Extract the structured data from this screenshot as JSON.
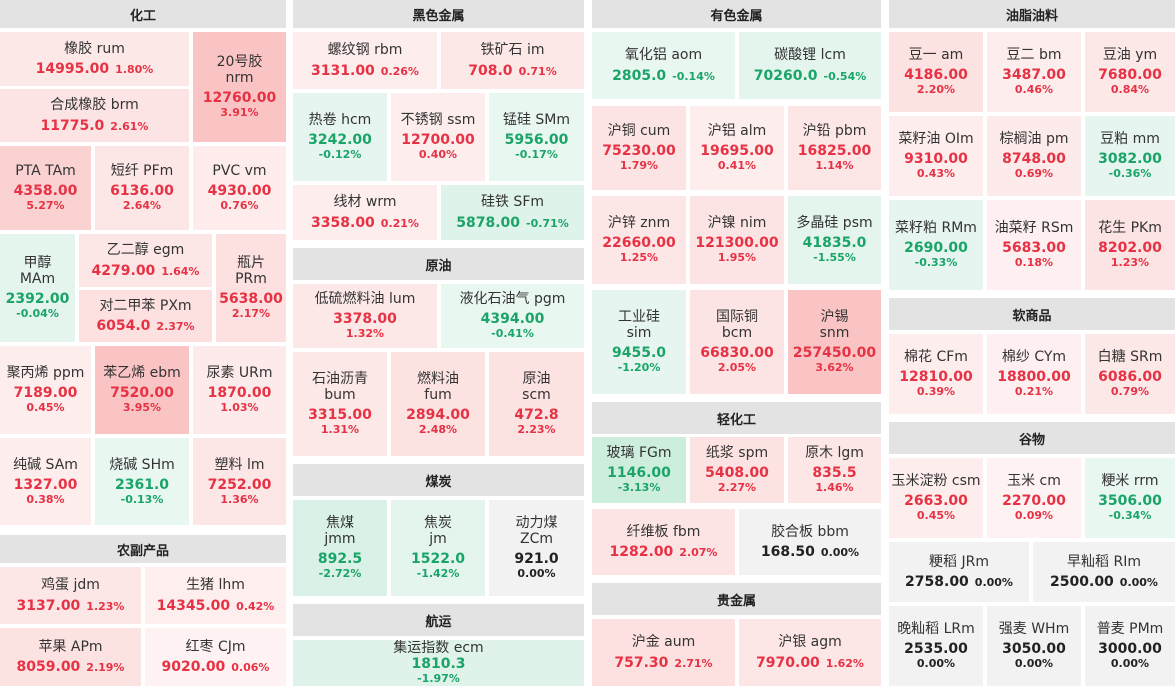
{
  "colors": {
    "up": "#e63244",
    "down": "#1aa468",
    "flat": "#222222",
    "header_bg": "#e3e3e3"
  },
  "headers": [
    {
      "label": "化工"
    },
    {
      "label": "农副产品"
    },
    {
      "label": "黑色金属"
    },
    {
      "label": "原油"
    },
    {
      "label": "煤炭"
    },
    {
      "label": "航运"
    },
    {
      "label": "有色金属"
    },
    {
      "label": "轻化工"
    },
    {
      "label": "贵金属"
    },
    {
      "label": "油脂油料"
    },
    {
      "label": "软商品"
    },
    {
      "label": "谷物"
    }
  ],
  "tiles": [
    {
      "name": "橡胶  rum",
      "price": "14995.00",
      "pct": "1.80%",
      "dir": "up"
    },
    {
      "name": "20号胶",
      "code": "nrm",
      "price": "12760.00",
      "pct": "3.91%",
      "dir": "up"
    },
    {
      "name": "合成橡胶  brm",
      "price": "11775.0",
      "pct": "2.61%",
      "dir": "up"
    },
    {
      "name": "PTA  TAm",
      "price": "4358.00",
      "pct": "5.27%",
      "dir": "up"
    },
    {
      "name": "短纤  PFm",
      "price": "6136.00",
      "pct": "2.64%",
      "dir": "up"
    },
    {
      "name": "PVC  vm",
      "price": "4930.00",
      "pct": "0.76%",
      "dir": "up"
    },
    {
      "name": "甲醇",
      "code": "MAm",
      "price": "2392.00",
      "pct": "-0.04%",
      "dir": "down"
    },
    {
      "name": "乙二醇  egm",
      "price": "4279.00",
      "pct": "1.64%",
      "dir": "up"
    },
    {
      "name": "对二甲苯  PXm",
      "price": "6054.0",
      "pct": "2.37%",
      "dir": "up"
    },
    {
      "name": "瓶片",
      "code": "PRm",
      "price": "5638.00",
      "pct": "2.17%",
      "dir": "up"
    },
    {
      "name": "聚丙烯  ppm",
      "price": "7189.00",
      "pct": "0.45%",
      "dir": "up"
    },
    {
      "name": "苯乙烯  ebm",
      "price": "7520.00",
      "pct": "3.95%",
      "dir": "up"
    },
    {
      "name": "尿素  URm",
      "price": "1870.00",
      "pct": "1.03%",
      "dir": "up"
    },
    {
      "name": "纯碱  SAm",
      "price": "1327.00",
      "pct": "0.38%",
      "dir": "up"
    },
    {
      "name": "烧碱  SHm",
      "price": "2361.0",
      "pct": "-0.13%",
      "dir": "down"
    },
    {
      "name": "塑料  lm",
      "price": "7252.00",
      "pct": "1.36%",
      "dir": "up"
    },
    {
      "name": "鸡蛋  jdm",
      "price": "3137.00",
      "pct": "1.23%",
      "dir": "up"
    },
    {
      "name": "生猪  lhm",
      "price": "14345.00",
      "pct": "0.42%",
      "dir": "up"
    },
    {
      "name": "苹果  APm",
      "price": "8059.00",
      "pct": "2.19%",
      "dir": "up"
    },
    {
      "name": "红枣  CJm",
      "price": "9020.00",
      "pct": "0.06%",
      "dir": "up"
    },
    {
      "name": "螺纹钢  rbm",
      "price": "3131.00",
      "pct": "0.26%",
      "dir": "up"
    },
    {
      "name": "铁矿石  im",
      "price": "708.0",
      "pct": "0.71%",
      "dir": "up"
    },
    {
      "name": "热卷  hcm",
      "price": "3242.00",
      "pct": "-0.12%",
      "dir": "down"
    },
    {
      "name": "不锈钢  ssm",
      "price": "12700.00",
      "pct": "0.40%",
      "dir": "up"
    },
    {
      "name": "锰硅  SMm",
      "price": "5956.00",
      "pct": "-0.17%",
      "dir": "down"
    },
    {
      "name": "线材  wrm",
      "price": "3358.00",
      "pct": "0.21%",
      "dir": "up"
    },
    {
      "name": "硅铁  SFm",
      "price": "5878.00",
      "pct": "-0.71%",
      "dir": "down"
    },
    {
      "name": "低硫燃料油  lum",
      "price": "3378.00",
      "pct": "1.32%",
      "dir": "up"
    },
    {
      "name": "液化石油气  pgm",
      "price": "4394.00",
      "pct": "-0.41%",
      "dir": "down"
    },
    {
      "name": "石油沥青",
      "code": "bum",
      "price": "3315.00",
      "pct": "1.31%",
      "dir": "up"
    },
    {
      "name": "燃料油",
      "code": "fum",
      "price": "2894.00",
      "pct": "2.48%",
      "dir": "up"
    },
    {
      "name": "原油",
      "code": "scm",
      "price": "472.8",
      "pct": "2.23%",
      "dir": "up"
    },
    {
      "name": "焦煤",
      "code": "jmm",
      "price": "892.5",
      "pct": "-2.72%",
      "dir": "down"
    },
    {
      "name": "焦炭",
      "code": "jm",
      "price": "1522.0",
      "pct": "-1.42%",
      "dir": "down"
    },
    {
      "name": "动力煤",
      "code": "ZCm",
      "price": "921.0",
      "pct": "0.00%",
      "dir": "flat"
    },
    {
      "name": "集运指数  ecm",
      "price": "1810.3",
      "pct": "-1.97%",
      "dir": "down"
    },
    {
      "name": "氧化铝  aom",
      "price": "2805.0",
      "pct": "-0.14%",
      "dir": "down"
    },
    {
      "name": "碳酸锂  lcm",
      "price": "70260.0",
      "pct": "-0.54%",
      "dir": "down"
    },
    {
      "name": "沪铜  cum",
      "price": "75230.00",
      "pct": "1.79%",
      "dir": "up"
    },
    {
      "name": "沪铝  alm",
      "price": "19695.00",
      "pct": "0.41%",
      "dir": "up"
    },
    {
      "name": "沪铅  pbm",
      "price": "16825.00",
      "pct": "1.14%",
      "dir": "up"
    },
    {
      "name": "沪锌  znm",
      "price": "22660.00",
      "pct": "1.25%",
      "dir": "up"
    },
    {
      "name": "沪镍  nim",
      "price": "121300.00",
      "pct": "1.95%",
      "dir": "up"
    },
    {
      "name": "多晶硅  psm",
      "price": "41835.0",
      "pct": "-1.55%",
      "dir": "down"
    },
    {
      "name": "工业硅",
      "code": "sim",
      "price": "9455.0",
      "pct": "-1.20%",
      "dir": "down"
    },
    {
      "name": "国际铜",
      "code": "bcm",
      "price": "66830.00",
      "pct": "2.05%",
      "dir": "up"
    },
    {
      "name": "沪锡",
      "code": "snm",
      "price": "257450.00",
      "pct": "3.62%",
      "dir": "up"
    },
    {
      "name": "玻璃  FGm",
      "price": "1146.00",
      "pct": "-3.13%",
      "dir": "down"
    },
    {
      "name": "纸浆  spm",
      "price": "5408.00",
      "pct": "2.27%",
      "dir": "up"
    },
    {
      "name": "原木  lgm",
      "price": "835.5",
      "pct": "1.46%",
      "dir": "up"
    },
    {
      "name": "纤维板  fbm",
      "price": "1282.00",
      "pct": "2.07%",
      "dir": "up"
    },
    {
      "name": "胶合板  bbm",
      "price": "168.50",
      "pct": "0.00%",
      "dir": "flat"
    },
    {
      "name": "沪金  aum",
      "price": "757.30",
      "pct": "2.71%",
      "dir": "up"
    },
    {
      "name": "沪银  agm",
      "price": "7970.00",
      "pct": "1.62%",
      "dir": "up"
    },
    {
      "name": "豆一  am",
      "price": "4186.00",
      "pct": "2.20%",
      "dir": "up"
    },
    {
      "name": "豆二  bm",
      "price": "3487.00",
      "pct": "0.46%",
      "dir": "up"
    },
    {
      "name": "豆油  ym",
      "price": "7680.00",
      "pct": "0.84%",
      "dir": "up"
    },
    {
      "name": "菜籽油  OIm",
      "price": "9310.00",
      "pct": "0.43%",
      "dir": "up"
    },
    {
      "name": "棕榈油  pm",
      "price": "8748.00",
      "pct": "0.69%",
      "dir": "up"
    },
    {
      "name": "豆粕  mm",
      "price": "3082.00",
      "pct": "-0.36%",
      "dir": "down"
    },
    {
      "name": "菜籽粕  RMm",
      "price": "2690.00",
      "pct": "-0.33%",
      "dir": "down"
    },
    {
      "name": "油菜籽  RSm",
      "price": "5683.00",
      "pct": "0.18%",
      "dir": "up"
    },
    {
      "name": "花生  PKm",
      "price": "8202.00",
      "pct": "1.23%",
      "dir": "up"
    },
    {
      "name": "棉花  CFm",
      "price": "12810.00",
      "pct": "0.39%",
      "dir": "up"
    },
    {
      "name": "棉纱  CYm",
      "price": "18800.00",
      "pct": "0.21%",
      "dir": "up"
    },
    {
      "name": "白糖  SRm",
      "price": "6086.00",
      "pct": "0.79%",
      "dir": "up"
    },
    {
      "name": "玉米淀粉  csm",
      "price": "2663.00",
      "pct": "0.45%",
      "dir": "up"
    },
    {
      "name": "玉米  cm",
      "price": "2270.00",
      "pct": "0.09%",
      "dir": "up"
    },
    {
      "name": "粳米  rrm",
      "price": "3506.00",
      "pct": "-0.34%",
      "dir": "down"
    },
    {
      "name": "粳稻  JRm",
      "price": "2758.00",
      "pct": "0.00%",
      "dir": "flat"
    },
    {
      "name": "早籼稻  RIm",
      "price": "2500.00",
      "pct": "0.00%",
      "dir": "flat"
    },
    {
      "name": "晚籼稻  LRm",
      "price": "2535.00",
      "pct": "0.00%",
      "dir": "flat"
    },
    {
      "name": "强麦  WHm",
      "price": "3050.00",
      "pct": "0.00%",
      "dir": "flat"
    },
    {
      "name": "普麦  PMm",
      "price": "3000.00",
      "pct": "0.00%",
      "dir": "flat"
    }
  ]
}
